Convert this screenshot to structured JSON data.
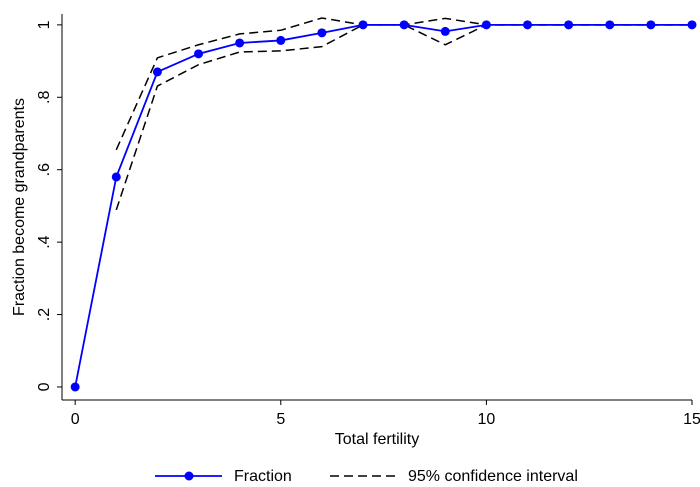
{
  "chart_data": {
    "type": "line",
    "x_label": "Total fertility",
    "y_label": "Fraction become grandparents",
    "x": [
      0,
      1,
      2,
      3,
      4,
      5,
      6,
      7,
      8,
      9,
      10,
      11,
      12,
      13,
      14,
      15
    ],
    "series": [
      {
        "name": "Fraction",
        "color": "#0000ff",
        "values": [
          0,
          0.58,
          0.87,
          0.92,
          0.95,
          0.957,
          0.978,
          1,
          1,
          0.982,
          1,
          1,
          1,
          1,
          1,
          1
        ]
      }
    ],
    "ci": {
      "name": "95% confidence interval",
      "color": "#000000",
      "upper": [
        null,
        0.655,
        0.909,
        0.945,
        0.975,
        0.985,
        1.019,
        1,
        1,
        1.018,
        1,
        1,
        1,
        1,
        1,
        1
      ],
      "lower": [
        null,
        0.489,
        0.831,
        0.89,
        0.925,
        0.928,
        0.94,
        1,
        1,
        0.945,
        1,
        1,
        1,
        1,
        1,
        1
      ]
    },
    "xlim": [
      -0.32,
      15
    ],
    "ylim": [
      -0.036,
      1.03
    ],
    "xticks": [
      0,
      5,
      10,
      15
    ],
    "yticks": [
      0,
      {
        "value": 0.2,
        "label": ".2"
      },
      {
        "value": 0.4,
        "label": ".4"
      },
      {
        "value": 0.6,
        "label": ".6"
      },
      {
        "value": 0.8,
        "label": ".8"
      },
      1
    ]
  }
}
